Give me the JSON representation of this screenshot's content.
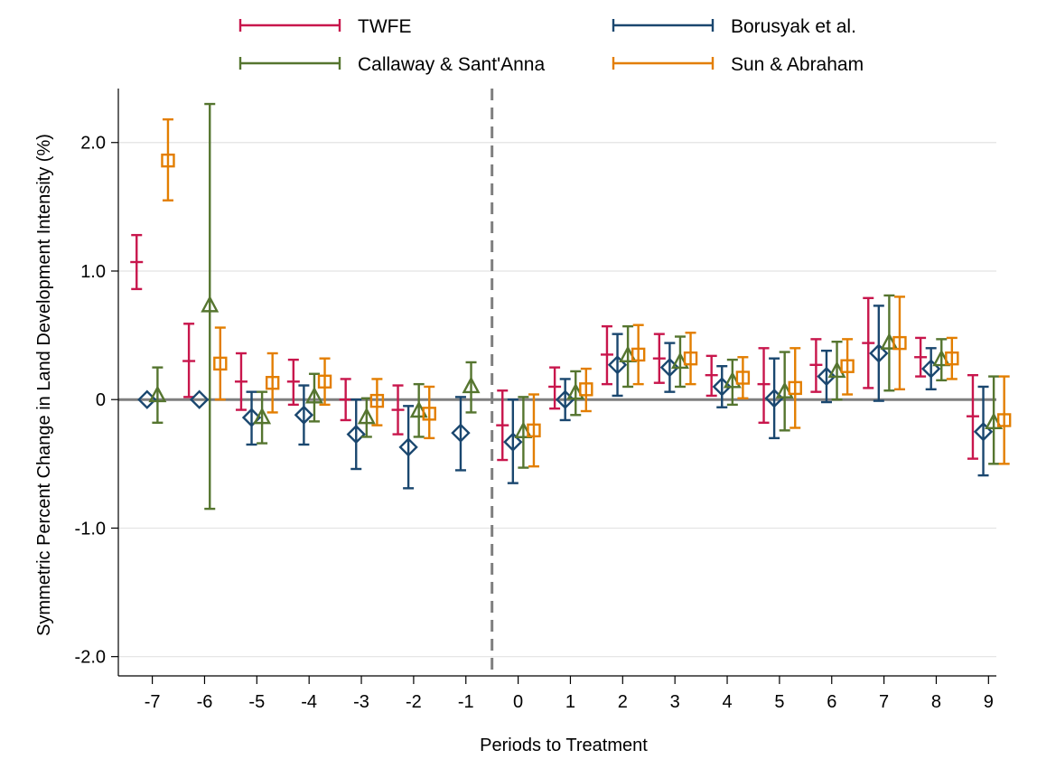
{
  "chart_data": {
    "type": "scatter",
    "subtype": "event-study coefficient plot with confidence intervals",
    "title": "",
    "xlabel": "Periods to Treatment",
    "ylabel": "Symmetric Percent Change in Land Development Intensity (%)",
    "x_ticks": [
      "-7",
      "-6",
      "-5",
      "-4",
      "-3",
      "-2",
      "-1",
      "0",
      "1",
      "2",
      "3",
      "4",
      "5",
      "6",
      "7",
      "8",
      "9"
    ],
    "y_ticks": [
      "-2.0",
      "-1.0",
      "0",
      "1.0",
      "2.0"
    ],
    "ylim": [
      -2.15,
      2.42
    ],
    "xlim": [
      -7.65,
      9.15
    ],
    "grid": "horizontal gridlines at y ticks",
    "reference_lines": [
      {
        "axis": "y",
        "value": 0,
        "style": "solid gray"
      },
      {
        "axis": "x",
        "value": -0.5,
        "style": "dashed gray"
      }
    ],
    "legend": {
      "position": "top",
      "entries": [
        "TWFE",
        "Borusyak et al.",
        "Callaway & Sant'Anna",
        "Sun & Abraham"
      ]
    },
    "series": [
      {
        "name": "TWFE",
        "color": "#c8164c",
        "marker": "none",
        "offset": -0.3,
        "points": [
          {
            "x": -7,
            "y": 1.07,
            "lo": 0.86,
            "hi": 1.28
          },
          {
            "x": -6,
            "y": 0.3,
            "lo": 0.02,
            "hi": 0.59
          },
          {
            "x": -5,
            "y": 0.14,
            "lo": -0.08,
            "hi": 0.36
          },
          {
            "x": -4,
            "y": 0.14,
            "lo": -0.04,
            "hi": 0.31
          },
          {
            "x": -3,
            "y": 0.0,
            "lo": -0.16,
            "hi": 0.16
          },
          {
            "x": -2,
            "y": -0.08,
            "lo": -0.27,
            "hi": 0.11
          },
          {
            "x": 0,
            "y": -0.2,
            "lo": -0.47,
            "hi": 0.07
          },
          {
            "x": 1,
            "y": 0.1,
            "lo": -0.07,
            "hi": 0.25
          },
          {
            "x": 2,
            "y": 0.35,
            "lo": 0.12,
            "hi": 0.57
          },
          {
            "x": 3,
            "y": 0.32,
            "lo": 0.13,
            "hi": 0.51
          },
          {
            "x": 4,
            "y": 0.19,
            "lo": 0.03,
            "hi": 0.34
          },
          {
            "x": 5,
            "y": 0.12,
            "lo": -0.18,
            "hi": 0.4
          },
          {
            "x": 6,
            "y": 0.27,
            "lo": 0.06,
            "hi": 0.47
          },
          {
            "x": 7,
            "y": 0.44,
            "lo": 0.09,
            "hi": 0.79
          },
          {
            "x": 8,
            "y": 0.33,
            "lo": 0.18,
            "hi": 0.48
          },
          {
            "x": 9,
            "y": -0.13,
            "lo": -0.46,
            "hi": 0.19
          }
        ]
      },
      {
        "name": "Borusyak et al.",
        "color": "#1a476f",
        "marker": "diamond",
        "offset": -0.1,
        "points": [
          {
            "x": -7,
            "y": 0.0,
            "lo": 0.0,
            "hi": 0.0
          },
          {
            "x": -6,
            "y": 0.0,
            "lo": 0.0,
            "hi": 0.0
          },
          {
            "x": -5,
            "y": -0.14,
            "lo": -0.35,
            "hi": 0.06
          },
          {
            "x": -4,
            "y": -0.12,
            "lo": -0.35,
            "hi": 0.11
          },
          {
            "x": -3,
            "y": -0.27,
            "lo": -0.54,
            "hi": 0.0
          },
          {
            "x": -2,
            "y": -0.37,
            "lo": -0.69,
            "hi": -0.05
          },
          {
            "x": -1,
            "y": -0.26,
            "lo": -0.55,
            "hi": 0.02
          },
          {
            "x": 0,
            "y": -0.33,
            "lo": -0.65,
            "hi": 0.0
          },
          {
            "x": 1,
            "y": 0.0,
            "lo": -0.16,
            "hi": 0.16
          },
          {
            "x": 2,
            "y": 0.27,
            "lo": 0.03,
            "hi": 0.51
          },
          {
            "x": 3,
            "y": 0.25,
            "lo": 0.06,
            "hi": 0.44
          },
          {
            "x": 4,
            "y": 0.1,
            "lo": -0.06,
            "hi": 0.26
          },
          {
            "x": 5,
            "y": 0.01,
            "lo": -0.3,
            "hi": 0.32
          },
          {
            "x": 6,
            "y": 0.18,
            "lo": -0.02,
            "hi": 0.38
          },
          {
            "x": 7,
            "y": 0.36,
            "lo": -0.01,
            "hi": 0.73
          },
          {
            "x": 8,
            "y": 0.24,
            "lo": 0.08,
            "hi": 0.4
          },
          {
            "x": 9,
            "y": -0.25,
            "lo": -0.59,
            "hi": 0.1
          }
        ]
      },
      {
        "name": "Callaway & Sant'Anna",
        "color": "#55752f",
        "marker": "triangle",
        "offset": 0.1,
        "points": [
          {
            "x": -7,
            "y": 0.03,
            "lo": -0.18,
            "hi": 0.25
          },
          {
            "x": -6,
            "y": 0.73,
            "lo": -0.85,
            "hi": 2.3
          },
          {
            "x": -5,
            "y": -0.14,
            "lo": -0.34,
            "hi": 0.06
          },
          {
            "x": -4,
            "y": 0.02,
            "lo": -0.17,
            "hi": 0.2
          },
          {
            "x": -3,
            "y": -0.14,
            "lo": -0.29,
            "hi": 0.01
          },
          {
            "x": -2,
            "y": -0.09,
            "lo": -0.29,
            "hi": 0.12
          },
          {
            "x": -1,
            "y": 0.1,
            "lo": -0.1,
            "hi": 0.29
          },
          {
            "x": 0,
            "y": -0.25,
            "lo": -0.53,
            "hi": 0.02
          },
          {
            "x": 1,
            "y": 0.05,
            "lo": -0.12,
            "hi": 0.22
          },
          {
            "x": 2,
            "y": 0.34,
            "lo": 0.1,
            "hi": 0.57
          },
          {
            "x": 3,
            "y": 0.29,
            "lo": 0.1,
            "hi": 0.49
          },
          {
            "x": 4,
            "y": 0.14,
            "lo": -0.04,
            "hi": 0.31
          },
          {
            "x": 5,
            "y": 0.06,
            "lo": -0.24,
            "hi": 0.37
          },
          {
            "x": 6,
            "y": 0.22,
            "lo": 0.0,
            "hi": 0.45
          },
          {
            "x": 7,
            "y": 0.44,
            "lo": 0.07,
            "hi": 0.81
          },
          {
            "x": 8,
            "y": 0.31,
            "lo": 0.15,
            "hi": 0.47
          },
          {
            "x": 9,
            "y": -0.18,
            "lo": -0.5,
            "hi": 0.18
          }
        ]
      },
      {
        "name": "Sun & Abraham",
        "color": "#e37e00",
        "marker": "square",
        "offset": 0.3,
        "points": [
          {
            "x": -7,
            "y": 1.86,
            "lo": 1.55,
            "hi": 2.18
          },
          {
            "x": -6,
            "y": 0.28,
            "lo": 0.0,
            "hi": 0.56
          },
          {
            "x": -5,
            "y": 0.13,
            "lo": -0.1,
            "hi": 0.36
          },
          {
            "x": -4,
            "y": 0.14,
            "lo": -0.04,
            "hi": 0.32
          },
          {
            "x": -3,
            "y": -0.01,
            "lo": -0.2,
            "hi": 0.16
          },
          {
            "x": -2,
            "y": -0.11,
            "lo": -0.3,
            "hi": 0.1
          },
          {
            "x": 0,
            "y": -0.24,
            "lo": -0.52,
            "hi": 0.04
          },
          {
            "x": 1,
            "y": 0.08,
            "lo": -0.09,
            "hi": 0.24
          },
          {
            "x": 2,
            "y": 0.35,
            "lo": 0.12,
            "hi": 0.58
          },
          {
            "x": 3,
            "y": 0.32,
            "lo": 0.12,
            "hi": 0.52
          },
          {
            "x": 4,
            "y": 0.17,
            "lo": 0.01,
            "hi": 0.33
          },
          {
            "x": 5,
            "y": 0.09,
            "lo": -0.22,
            "hi": 0.4
          },
          {
            "x": 6,
            "y": 0.26,
            "lo": 0.04,
            "hi": 0.47
          },
          {
            "x": 7,
            "y": 0.44,
            "lo": 0.08,
            "hi": 0.8
          },
          {
            "x": 8,
            "y": 0.32,
            "lo": 0.16,
            "hi": 0.48
          },
          {
            "x": 9,
            "y": -0.16,
            "lo": -0.5,
            "hi": 0.18
          }
        ]
      }
    ]
  }
}
